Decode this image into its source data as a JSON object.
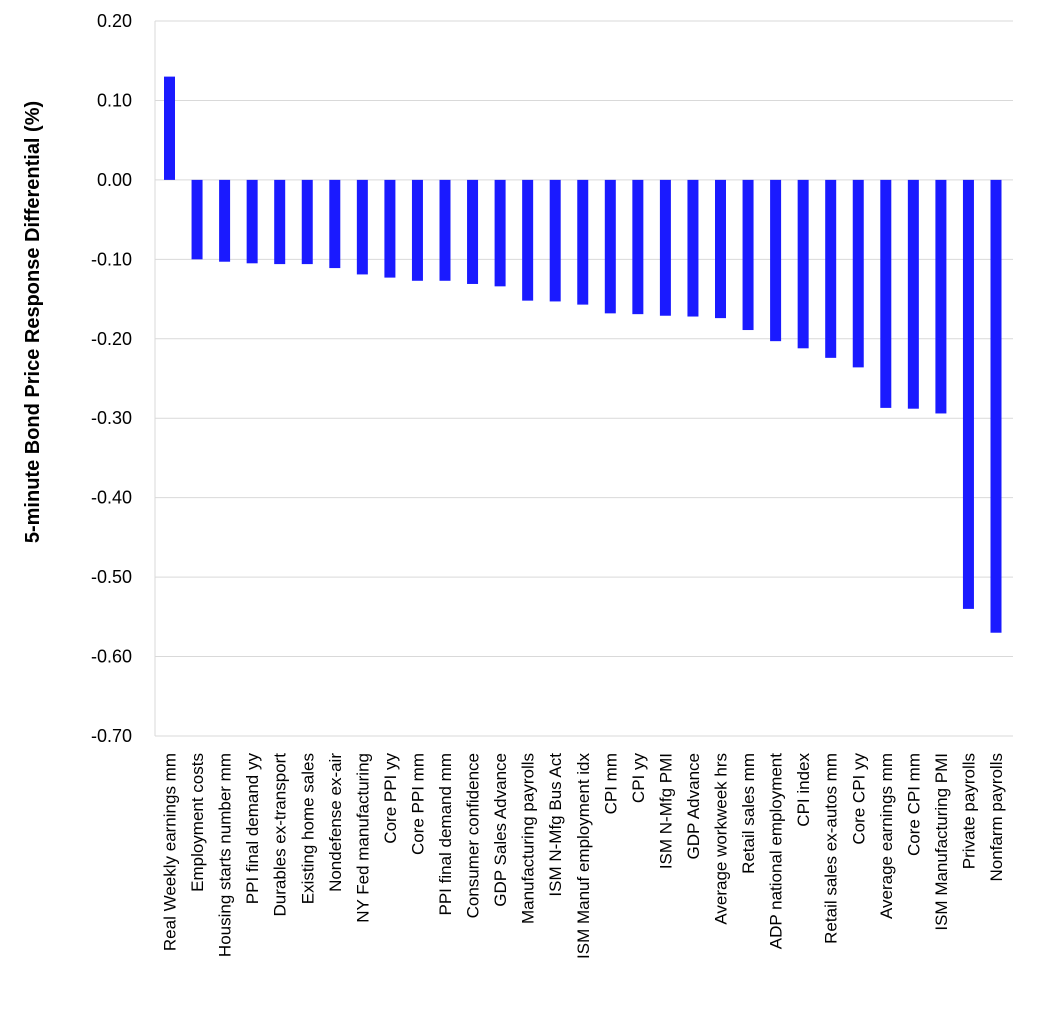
{
  "chart_data": {
    "type": "bar",
    "title": "",
    "xlabel": "",
    "ylabel": "5-minute Bond Price Response Differential (%)",
    "ylim": [
      -0.7,
      0.2
    ],
    "yticks": [
      "0.20",
      "0.10",
      "0.00",
      "-0.10",
      "-0.20",
      "-0.30",
      "-0.40",
      "-0.50",
      "-0.60",
      "-0.70"
    ],
    "ytick_values": [
      0.2,
      0.1,
      0.0,
      -0.1,
      -0.2,
      -0.3,
      -0.4,
      -0.5,
      -0.6,
      -0.7
    ],
    "grid": true,
    "bar_color": "#1a1aff",
    "grid_color": "#d9d9d9",
    "categories": [
      "Real Weekly earnings mm",
      "Employment costs",
      "Housing starts number mm",
      "PPI final demand yy",
      "Durables ex-transport",
      "Existing home sales",
      "Nondefense ex-air",
      "NY Fed manufacturing",
      "Core PPI yy",
      "Core PPI mm",
      "PPI final demand mm",
      "Consumer confidence",
      "GDP Sales Advance",
      "Manufacturing payrolls",
      "ISM N-Mfg Bus Act",
      "ISM Manuf employment idx",
      "CPI mm",
      "CPI yy",
      "ISM N-Mfg PMI",
      "GDP Advance",
      "Average workweek hrs",
      "Retail sales mm",
      "ADP national employment",
      "CPI index",
      "Retail sales ex-autos mm",
      "Core CPI yy",
      "Average earnings mm",
      "Core CPI mm",
      "ISM Manufacturing PMI",
      "Private payrolls",
      "Nonfarm payrolls"
    ],
    "values": [
      0.13,
      -0.1,
      -0.103,
      -0.105,
      -0.106,
      -0.106,
      -0.111,
      -0.119,
      -0.123,
      -0.127,
      -0.127,
      -0.131,
      -0.134,
      -0.152,
      -0.153,
      -0.157,
      -0.168,
      -0.169,
      -0.171,
      -0.172,
      -0.174,
      -0.189,
      -0.203,
      -0.212,
      -0.224,
      -0.236,
      -0.287,
      -0.288,
      -0.294,
      -0.54,
      -0.57
    ]
  }
}
